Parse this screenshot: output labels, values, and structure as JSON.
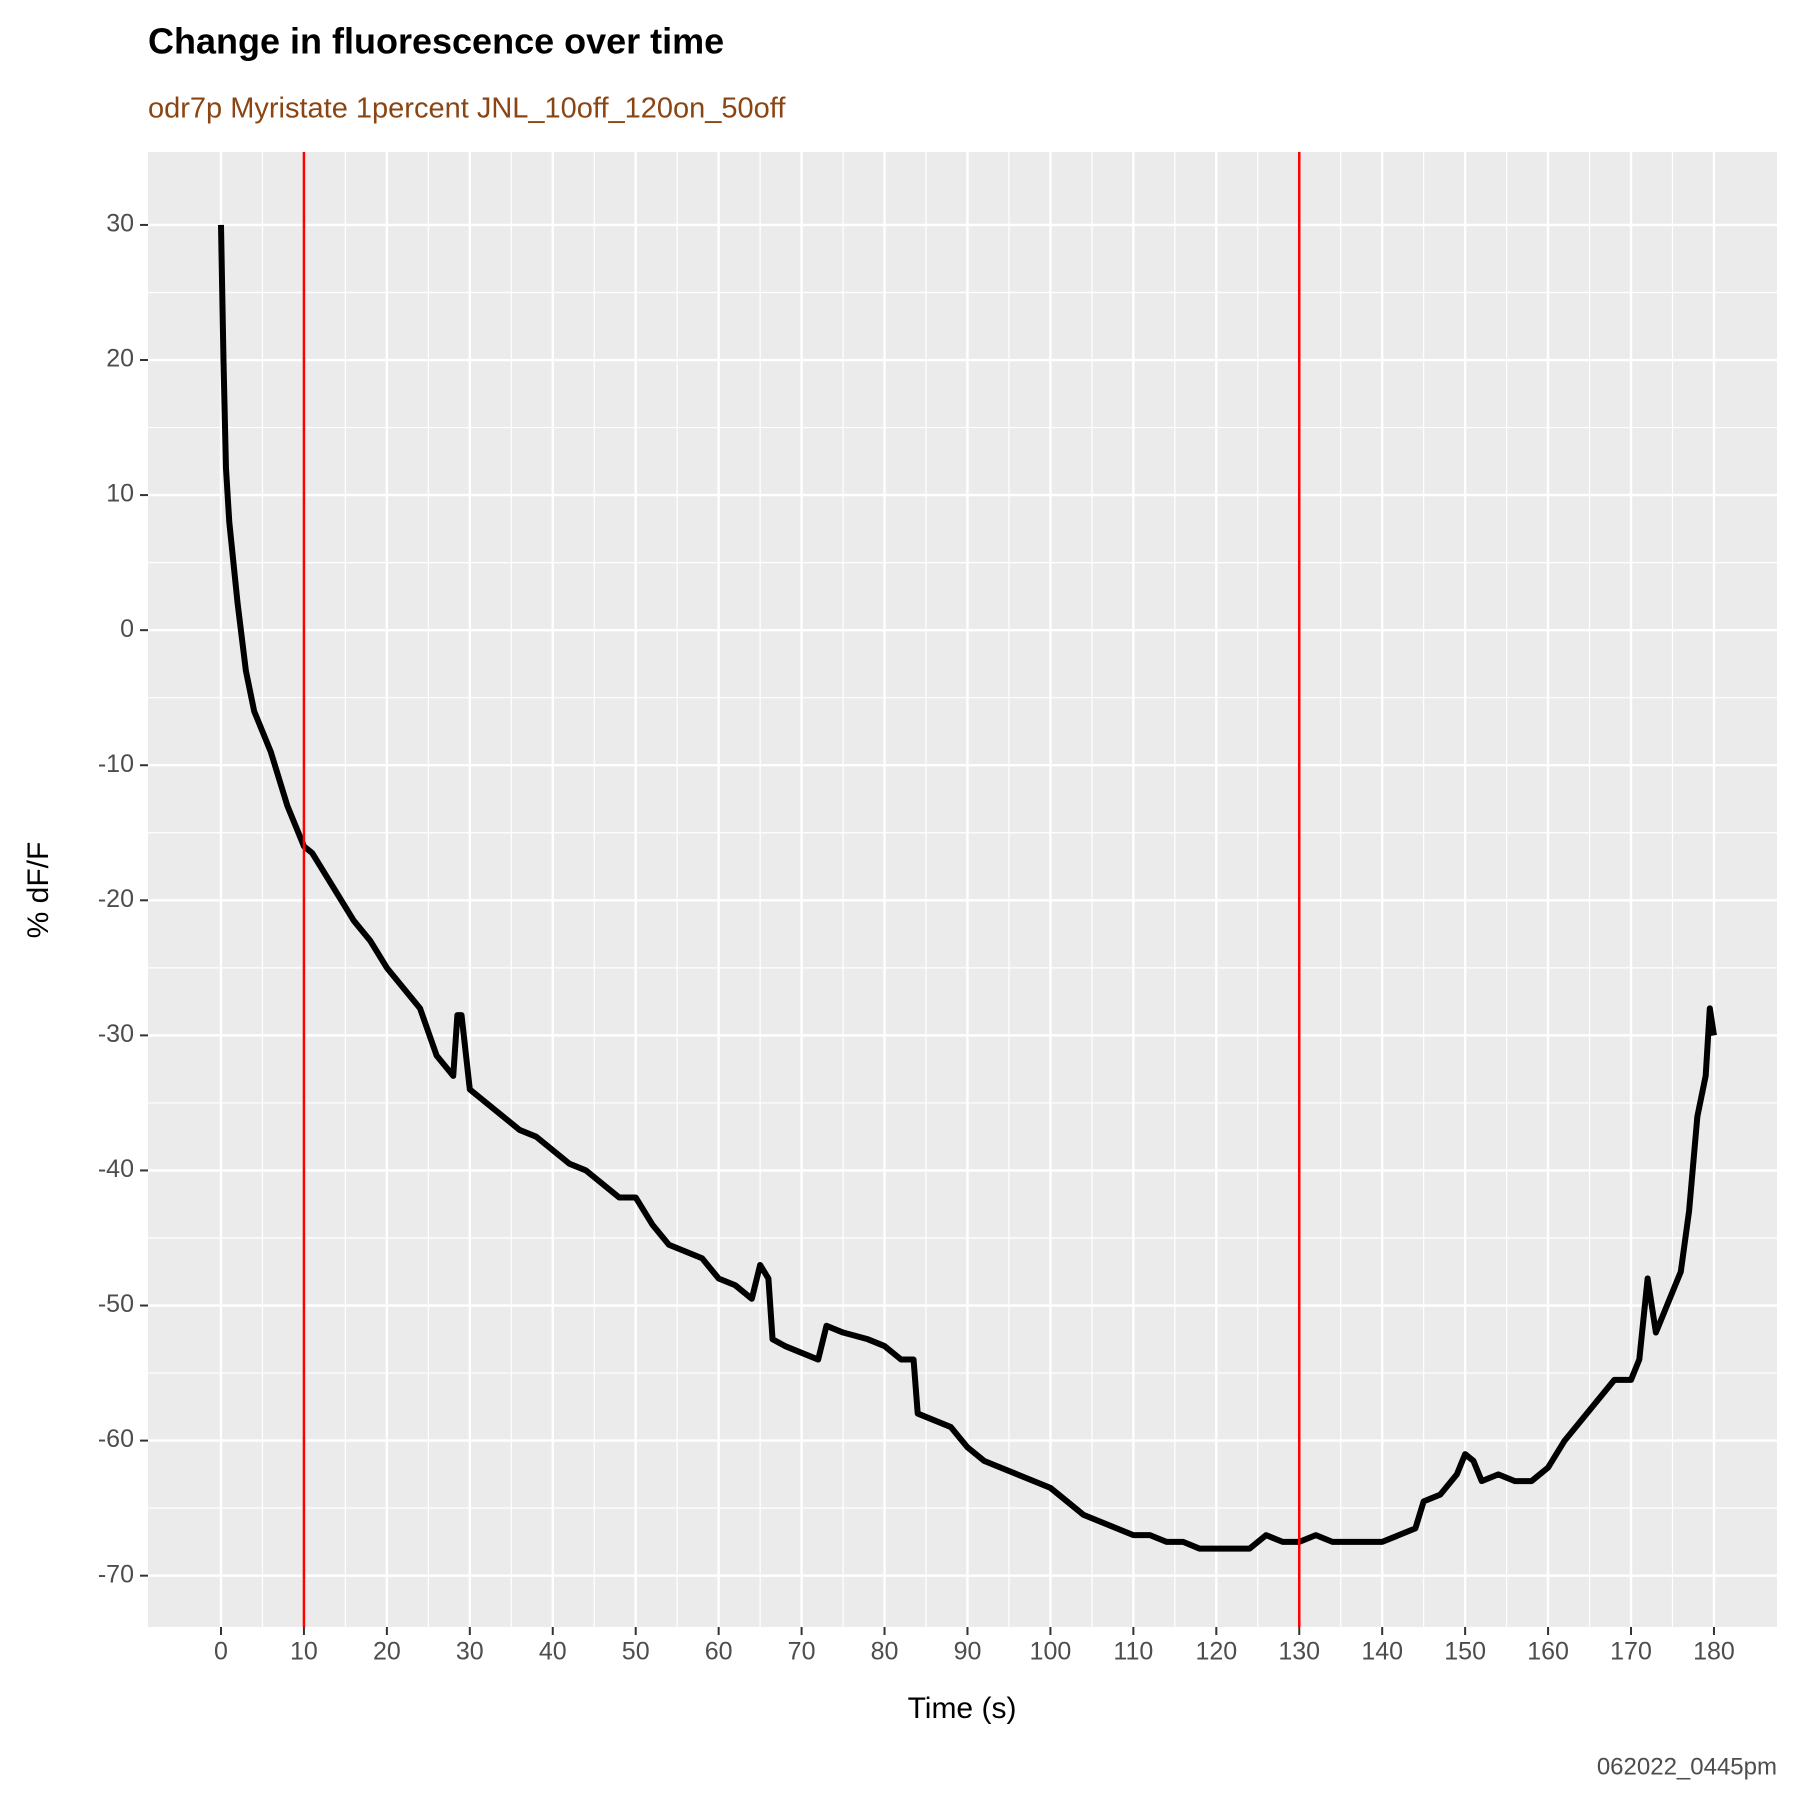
{
  "chart_data": {
    "type": "line",
    "title": "Change in fluorescence over time",
    "subtitle": "odr7p Myristate 1percent JNL_10off_120on_50off",
    "x_label": "Time (s)",
    "y_label": "% dF/F",
    "caption": "062022_0445pm",
    "color": "#000000",
    "x": [
      0,
      0.3,
      0.6,
      1,
      2,
      3,
      4,
      5,
      6,
      7,
      8,
      9,
      10,
      11,
      12,
      14,
      16,
      18,
      20,
      22,
      24,
      26,
      28,
      28.5,
      29,
      30,
      32,
      34,
      36,
      38,
      40,
      42,
      44,
      46,
      48,
      50,
      52,
      54,
      56,
      58,
      60,
      62,
      64,
      65,
      66,
      66.5,
      68,
      70,
      72,
      73,
      75,
      78,
      80,
      82,
      83.5,
      84,
      86,
      88,
      90,
      92,
      94,
      96,
      98,
      100,
      102,
      104,
      106,
      108,
      110,
      112,
      114,
      116,
      118,
      120,
      122,
      124,
      126,
      128,
      130,
      132,
      134,
      136,
      138,
      140,
      142,
      144,
      145,
      147,
      149,
      150,
      151,
      152,
      154,
      156,
      158,
      160,
      162,
      164,
      166,
      168,
      170,
      171,
      172,
      173,
      174,
      175,
      176,
      177,
      178,
      179,
      179.5,
      180
    ],
    "values": [
      30,
      20,
      12,
      8,
      2,
      -3,
      -6,
      -7.5,
      -9,
      -11,
      -13,
      -14.5,
      -16,
      -16.5,
      -17.5,
      -19.5,
      -21.5,
      -23,
      -25,
      -26.5,
      -28,
      -31.5,
      -33,
      -28.5,
      -28.5,
      -34,
      -35,
      -36,
      -37,
      -37.5,
      -38.5,
      -39.5,
      -40,
      -41,
      -42,
      -42,
      -44,
      -45.5,
      -46,
      -46.5,
      -48,
      -48.5,
      -49.5,
      -47,
      -48,
      -52.5,
      -53,
      -53.5,
      -54,
      -51.5,
      -52,
      -52.5,
      -53,
      -54,
      -54,
      -58,
      -58.5,
      -59,
      -60.5,
      -61.5,
      -62,
      -62.5,
      -63,
      -63.5,
      -64.5,
      -65.5,
      -66,
      -66.5,
      -67,
      -67,
      -67.5,
      -67.5,
      -68,
      -68,
      -68,
      -68,
      -67,
      -67.5,
      -67.5,
      -67,
      -67.5,
      -67.5,
      -67.5,
      -67.5,
      -67,
      -66.5,
      -64.5,
      -64,
      -62.5,
      -61,
      -61.5,
      -63,
      -62.5,
      -63,
      -63,
      -62,
      -60,
      -58.5,
      -57,
      -55.5,
      -55.5,
      -54,
      -48,
      -52,
      -50.5,
      -49,
      -47.5,
      -43,
      -36,
      -33,
      -28,
      -30
    ],
    "vlines": [
      {
        "x": 10,
        "color": "#ff0000"
      },
      {
        "x": 130,
        "color": "#ff0000"
      }
    ],
    "xlim": [
      -8.8,
      187.6
    ],
    "ylim": [
      -73.8,
      35.4
    ],
    "xticks": [
      0,
      10,
      20,
      30,
      40,
      50,
      60,
      70,
      80,
      90,
      100,
      110,
      120,
      130,
      140,
      150,
      160,
      170,
      180
    ],
    "yticks": [
      -70,
      -60,
      -50,
      -40,
      -30,
      -20,
      -10,
      0,
      10,
      20,
      30
    ],
    "grid": true
  }
}
